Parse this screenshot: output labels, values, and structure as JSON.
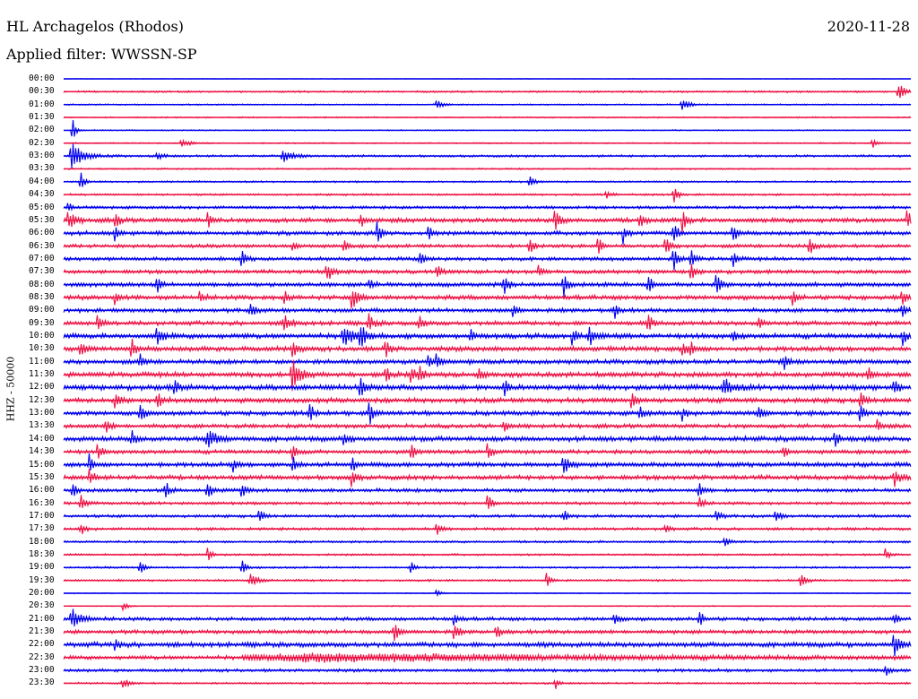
{
  "header": {
    "station": "HL Archagelos (Rhodos)",
    "date": "2020-11-28",
    "filter": "Applied filter: WWSSN-SP"
  },
  "chart_data": {
    "type": "line",
    "title": "HL Archagelos (Rhodos)",
    "subtitle": "Applied filter: WWSSN-SP",
    "date": "2020-11-28",
    "ylabel": "HHZ - 50000",
    "xlabel": "",
    "row_interval_minutes": 30,
    "row_labels": [
      "00:00",
      "00:30",
      "01:00",
      "01:30",
      "02:00",
      "02:30",
      "03:00",
      "03:30",
      "04:00",
      "04:30",
      "05:00",
      "05:30",
      "06:00",
      "06:30",
      "07:00",
      "07:30",
      "08:00",
      "08:30",
      "09:00",
      "09:30",
      "10:00",
      "10:30",
      "11:00",
      "11:30",
      "12:00",
      "12:30",
      "13:00",
      "13:30",
      "14:00",
      "14:30",
      "15:00",
      "15:30",
      "16:00",
      "16:30",
      "17:00",
      "17:30",
      "18:00",
      "18:30",
      "19:00",
      "19:30",
      "20:00",
      "20:30",
      "21:00",
      "21:30",
      "22:00",
      "22:30",
      "23:00",
      "23:30"
    ],
    "series_colors": [
      "#0000ee",
      "#ee1144"
    ],
    "color_pattern": "alternating rows, starting blue at 00:00",
    "noise_level": [
      0.3,
      0.8,
      0.6,
      0.6,
      0.5,
      0.6,
      1.0,
      0.7,
      0.8,
      0.9,
      1.3,
      2.0,
      1.8,
      1.6,
      1.6,
      1.7,
      1.9,
      2.0,
      1.8,
      1.9,
      2.2,
      2.2,
      2.0,
      2.2,
      2.4,
      2.2,
      2.0,
      1.8,
      2.2,
      1.8,
      2.0,
      2.0,
      1.6,
      1.3,
      1.3,
      1.2,
      1.0,
      0.9,
      0.9,
      0.9,
      0.5,
      0.5,
      1.6,
      1.7,
      2.2,
      1.7,
      1.4,
      0.8
    ],
    "events": [
      [],
      [
        {
          "t": 0.985,
          "a": 11,
          "w": 0.006
        }
      ],
      [
        {
          "t": 0.44,
          "a": 6,
          "w": 0.006
        },
        {
          "t": 0.73,
          "a": 7,
          "w": 0.007
        }
      ],
      [],
      [
        {
          "t": 0.01,
          "a": 18,
          "w": 0.003
        }
      ],
      [
        {
          "t": 0.14,
          "a": 4,
          "w": 0.01
        },
        {
          "t": 0.955,
          "a": 6,
          "w": 0.004
        }
      ],
      [
        {
          "t": 0.01,
          "a": 14,
          "w": 0.012
        },
        {
          "t": 0.26,
          "a": 7,
          "w": 0.01
        },
        {
          "t": 0.11,
          "a": 4,
          "w": 0.006
        }
      ],
      [],
      [
        {
          "t": 0.02,
          "a": 11,
          "w": 0.004
        },
        {
          "t": 0.55,
          "a": 10,
          "w": 0.004
        }
      ],
      [
        {
          "t": 0.64,
          "a": 6,
          "w": 0.004
        },
        {
          "t": 0.72,
          "a": 11,
          "w": 0.004
        }
      ],
      [
        {
          "t": 0.005,
          "a": 6,
          "w": 0.004
        }
      ],
      [
        {
          "t": 0.005,
          "a": 13,
          "w": 0.006
        },
        {
          "t": 0.06,
          "a": 12,
          "w": 0.004
        },
        {
          "t": 0.17,
          "a": 11,
          "w": 0.004
        },
        {
          "t": 0.35,
          "a": 9,
          "w": 0.004
        },
        {
          "t": 0.58,
          "a": 16,
          "w": 0.004
        },
        {
          "t": 0.68,
          "a": 10,
          "w": 0.004
        },
        {
          "t": 0.73,
          "a": 14,
          "w": 0.004
        },
        {
          "t": 0.995,
          "a": 16,
          "w": 0.004
        }
      ],
      [
        {
          "t": 0.06,
          "a": 9,
          "w": 0.004
        },
        {
          "t": 0.37,
          "a": 13,
          "w": 0.004
        },
        {
          "t": 0.43,
          "a": 9,
          "w": 0.004
        },
        {
          "t": 0.66,
          "a": 12,
          "w": 0.004
        },
        {
          "t": 0.72,
          "a": 16,
          "w": 0.004
        },
        {
          "t": 0.79,
          "a": 12,
          "w": 0.004
        }
      ],
      [
        {
          "t": 0.27,
          "a": 8,
          "w": 0.004
        },
        {
          "t": 0.33,
          "a": 8,
          "w": 0.004
        },
        {
          "t": 0.55,
          "a": 10,
          "w": 0.004
        },
        {
          "t": 0.63,
          "a": 12,
          "w": 0.004
        },
        {
          "t": 0.71,
          "a": 14,
          "w": 0.004
        },
        {
          "t": 0.88,
          "a": 12,
          "w": 0.004
        }
      ],
      [
        {
          "t": 0.21,
          "a": 12,
          "w": 0.004
        },
        {
          "t": 0.42,
          "a": 9,
          "w": 0.004
        },
        {
          "t": 0.72,
          "a": 18,
          "w": 0.004
        },
        {
          "t": 0.74,
          "a": 12,
          "w": 0.004
        },
        {
          "t": 0.79,
          "a": 10,
          "w": 0.004
        }
      ],
      [
        {
          "t": 0.31,
          "a": 12,
          "w": 0.006
        },
        {
          "t": 0.44,
          "a": 10,
          "w": 0.004
        },
        {
          "t": 0.56,
          "a": 9,
          "w": 0.004
        },
        {
          "t": 0.74,
          "a": 12,
          "w": 0.004
        }
      ],
      [
        {
          "t": 0.11,
          "a": 10,
          "w": 0.004
        },
        {
          "t": 0.36,
          "a": 9,
          "w": 0.004
        },
        {
          "t": 0.52,
          "a": 12,
          "w": 0.004
        },
        {
          "t": 0.59,
          "a": 14,
          "w": 0.004
        },
        {
          "t": 0.69,
          "a": 11,
          "w": 0.004
        },
        {
          "t": 0.77,
          "a": 14,
          "w": 0.004
        }
      ],
      [
        {
          "t": 0.06,
          "a": 9,
          "w": 0.004
        },
        {
          "t": 0.16,
          "a": 8,
          "w": 0.004
        },
        {
          "t": 0.26,
          "a": 9,
          "w": 0.004
        },
        {
          "t": 0.34,
          "a": 14,
          "w": 0.006
        },
        {
          "t": 0.86,
          "a": 14,
          "w": 0.004
        },
        {
          "t": 0.99,
          "a": 10,
          "w": 0.004
        }
      ],
      [
        {
          "t": 0.22,
          "a": 10,
          "w": 0.004
        },
        {
          "t": 0.53,
          "a": 8,
          "w": 0.004
        },
        {
          "t": 0.65,
          "a": 9,
          "w": 0.004
        },
        {
          "t": 0.99,
          "a": 8,
          "w": 0.004
        }
      ],
      [
        {
          "t": 0.04,
          "a": 10,
          "w": 0.004
        },
        {
          "t": 0.26,
          "a": 11,
          "w": 0.006
        },
        {
          "t": 0.36,
          "a": 10,
          "w": 0.005
        },
        {
          "t": 0.42,
          "a": 9,
          "w": 0.004
        },
        {
          "t": 0.69,
          "a": 11,
          "w": 0.004
        },
        {
          "t": 0.82,
          "a": 8,
          "w": 0.004
        }
      ],
      [
        {
          "t": 0.11,
          "a": 10,
          "w": 0.006
        },
        {
          "t": 0.33,
          "a": 12,
          "w": 0.01
        },
        {
          "t": 0.35,
          "a": 14,
          "w": 0.006
        },
        {
          "t": 0.48,
          "a": 9,
          "w": 0.004
        },
        {
          "t": 0.6,
          "a": 10,
          "w": 0.004
        },
        {
          "t": 0.62,
          "a": 11,
          "w": 0.006
        },
        {
          "t": 0.79,
          "a": 9,
          "w": 0.004
        },
        {
          "t": 0.99,
          "a": 10,
          "w": 0.004
        }
      ],
      [
        {
          "t": 0.02,
          "a": 10,
          "w": 0.006
        },
        {
          "t": 0.08,
          "a": 12,
          "w": 0.004
        },
        {
          "t": 0.27,
          "a": 14,
          "w": 0.004
        },
        {
          "t": 0.38,
          "a": 12,
          "w": 0.004
        },
        {
          "t": 0.73,
          "a": 12,
          "w": 0.004
        },
        {
          "t": 0.74,
          "a": 10,
          "w": 0.004
        }
      ],
      [
        {
          "t": 0.09,
          "a": 9,
          "w": 0.004
        },
        {
          "t": 0.44,
          "a": 10,
          "w": 0.004
        },
        {
          "t": 0.43,
          "a": 8,
          "w": 0.004
        },
        {
          "t": 0.85,
          "a": 12,
          "w": 0.004
        }
      ],
      [
        {
          "t": 0.27,
          "a": 18,
          "w": 0.008
        },
        {
          "t": 0.38,
          "a": 10,
          "w": 0.004
        },
        {
          "t": 0.41,
          "a": 12,
          "w": 0.004
        },
        {
          "t": 0.42,
          "a": 10,
          "w": 0.004
        },
        {
          "t": 0.49,
          "a": 8,
          "w": 0.004
        },
        {
          "t": 0.95,
          "a": 8,
          "w": 0.004
        }
      ],
      [
        {
          "t": 0.13,
          "a": 12,
          "w": 0.004
        },
        {
          "t": 0.35,
          "a": 14,
          "w": 0.004
        },
        {
          "t": 0.52,
          "a": 10,
          "w": 0.004
        },
        {
          "t": 0.78,
          "a": 10,
          "w": 0.008
        },
        {
          "t": 0.98,
          "a": 10,
          "w": 0.004
        }
      ],
      [
        {
          "t": 0.06,
          "a": 10,
          "w": 0.004
        },
        {
          "t": 0.11,
          "a": 10,
          "w": 0.004
        },
        {
          "t": 0.67,
          "a": 10,
          "w": 0.004
        },
        {
          "t": 0.94,
          "a": 9,
          "w": 0.004
        }
      ],
      [
        {
          "t": 0.09,
          "a": 10,
          "w": 0.004
        },
        {
          "t": 0.29,
          "a": 12,
          "w": 0.004
        },
        {
          "t": 0.36,
          "a": 18,
          "w": 0.004
        },
        {
          "t": 0.68,
          "a": 8,
          "w": 0.004
        },
        {
          "t": 0.73,
          "a": 8,
          "w": 0.004
        },
        {
          "t": 0.82,
          "a": 10,
          "w": 0.004
        },
        {
          "t": 0.94,
          "a": 10,
          "w": 0.004
        }
      ],
      [
        {
          "t": 0.05,
          "a": 9,
          "w": 0.004
        },
        {
          "t": 0.52,
          "a": 8,
          "w": 0.004
        },
        {
          "t": 0.96,
          "a": 8,
          "w": 0.004
        }
      ],
      [
        {
          "t": 0.08,
          "a": 10,
          "w": 0.004
        },
        {
          "t": 0.17,
          "a": 10,
          "w": 0.01
        },
        {
          "t": 0.33,
          "a": 10,
          "w": 0.004
        },
        {
          "t": 0.91,
          "a": 10,
          "w": 0.004
        }
      ],
      [
        {
          "t": 0.04,
          "a": 10,
          "w": 0.004
        },
        {
          "t": 0.27,
          "a": 10,
          "w": 0.004
        },
        {
          "t": 0.41,
          "a": 12,
          "w": 0.004
        },
        {
          "t": 0.5,
          "a": 10,
          "w": 0.004
        },
        {
          "t": 0.85,
          "a": 9,
          "w": 0.004
        }
      ],
      [
        {
          "t": 0.03,
          "a": 12,
          "w": 0.004
        },
        {
          "t": 0.2,
          "a": 8,
          "w": 0.004
        },
        {
          "t": 0.27,
          "a": 10,
          "w": 0.004
        },
        {
          "t": 0.34,
          "a": 10,
          "w": 0.004
        },
        {
          "t": 0.59,
          "a": 10,
          "w": 0.006
        }
      ],
      [
        {
          "t": 0.03,
          "a": 12,
          "w": 0.004
        },
        {
          "t": 0.34,
          "a": 12,
          "w": 0.004
        },
        {
          "t": 0.98,
          "a": 10,
          "w": 0.006
        }
      ],
      [
        {
          "t": 0.01,
          "a": 10,
          "w": 0.004
        },
        {
          "t": 0.12,
          "a": 12,
          "w": 0.004
        },
        {
          "t": 0.17,
          "a": 9,
          "w": 0.006
        },
        {
          "t": 0.21,
          "a": 9,
          "w": 0.004
        },
        {
          "t": 0.75,
          "a": 10,
          "w": 0.004
        }
      ],
      [
        {
          "t": 0.02,
          "a": 12,
          "w": 0.004
        },
        {
          "t": 0.5,
          "a": 12,
          "w": 0.004
        },
        {
          "t": 0.75,
          "a": 10,
          "w": 0.004
        }
      ],
      [
        {
          "t": 0.23,
          "a": 9,
          "w": 0.004
        },
        {
          "t": 0.59,
          "a": 8,
          "w": 0.004
        },
        {
          "t": 0.77,
          "a": 9,
          "w": 0.004
        },
        {
          "t": 0.84,
          "a": 10,
          "w": 0.004
        }
      ],
      [
        {
          "t": 0.02,
          "a": 8,
          "w": 0.004
        },
        {
          "t": 0.44,
          "a": 8,
          "w": 0.004
        },
        {
          "t": 0.71,
          "a": 7,
          "w": 0.004
        }
      ],
      [
        {
          "t": 0.78,
          "a": 9,
          "w": 0.004
        }
      ],
      [
        {
          "t": 0.17,
          "a": 9,
          "w": 0.004
        },
        {
          "t": 0.97,
          "a": 8,
          "w": 0.004
        }
      ],
      [
        {
          "t": 0.09,
          "a": 8,
          "w": 0.004
        },
        {
          "t": 0.21,
          "a": 10,
          "w": 0.004
        },
        {
          "t": 0.41,
          "a": 8,
          "w": 0.004
        }
      ],
      [
        {
          "t": 0.22,
          "a": 10,
          "w": 0.006
        },
        {
          "t": 0.57,
          "a": 9,
          "w": 0.004
        },
        {
          "t": 0.87,
          "a": 7,
          "w": 0.006
        }
      ],
      [
        {
          "t": 0.44,
          "a": 5,
          "w": 0.004
        }
      ],
      [
        {
          "t": 0.07,
          "a": 6,
          "w": 0.004
        }
      ],
      [
        {
          "t": 0.01,
          "a": 11,
          "w": 0.01
        },
        {
          "t": 0.46,
          "a": 9,
          "w": 0.004
        },
        {
          "t": 0.65,
          "a": 10,
          "w": 0.004
        },
        {
          "t": 0.75,
          "a": 10,
          "w": 0.004
        },
        {
          "t": 0.98,
          "a": 8,
          "w": 0.004
        }
      ],
      [
        {
          "t": 0.39,
          "a": 12,
          "w": 0.004
        },
        {
          "t": 0.46,
          "a": 13,
          "w": 0.004
        },
        {
          "t": 0.51,
          "a": 10,
          "w": 0.004
        }
      ],
      [
        {
          "t": 0.06,
          "a": 9,
          "w": 0.004
        },
        {
          "t": 0.98,
          "a": 13,
          "w": 0.006
        }
      ],
      [
        {
          "t": 0.3,
          "a": 4,
          "w": 0.3
        }
      ],
      [
        {
          "t": 0.97,
          "a": 7,
          "w": 0.004
        }
      ],
      [
        {
          "t": 0.07,
          "a": 6,
          "w": 0.006
        },
        {
          "t": 0.58,
          "a": 8,
          "w": 0.003
        }
      ]
    ]
  }
}
